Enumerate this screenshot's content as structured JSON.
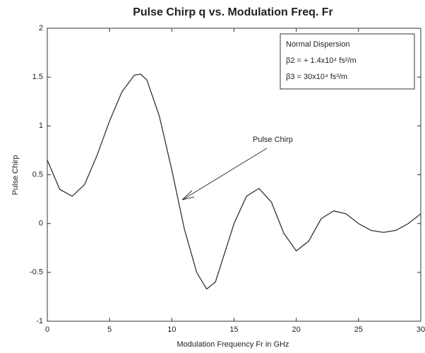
{
  "chart_data": {
    "type": "line",
    "title": "Pulse Chirp q  vs.  Modulation Freq.  Fr",
    "x_label": "Modulation Frequency Fr in GHz",
    "y_label": "Pulse Chirp",
    "annotations": [
      "Normal Dispersion",
      "β2 = + 1.4x10⁴ fs²/m",
      "β3 = 30x10⁴ fs³/m",
      "Pulse Chirp"
    ],
    "x": [
      0,
      1,
      2,
      3,
      4,
      5,
      6,
      7,
      7.5,
      8,
      9,
      10,
      11,
      12,
      12.8,
      13.5,
      14,
      15,
      16,
      17,
      18,
      19,
      20,
      21,
      22,
      23,
      24,
      25,
      26,
      27,
      28,
      29,
      30
    ],
    "series": [
      {
        "name": "Pulse Chirp",
        "color": "#333333",
        "values": [
          0.65,
          0.35,
          0.28,
          0.4,
          0.7,
          1.05,
          1.35,
          1.52,
          1.53,
          1.47,
          1.1,
          0.55,
          -0.05,
          -0.5,
          -0.67,
          -0.6,
          -0.4,
          0.0,
          0.28,
          0.36,
          0.22,
          -0.1,
          -0.28,
          -0.18,
          0.05,
          0.13,
          0.1,
          0.0,
          -0.07,
          -0.09,
          -0.07,
          0.0,
          0.1
        ]
      }
    ],
    "xlim": [
      0,
      30
    ],
    "xticks": [
      0,
      5,
      10,
      15,
      20,
      25,
      30
    ],
    "ylim": [
      -1,
      2
    ],
    "yticks": [
      -1,
      -0.5,
      0,
      0.5,
      1,
      1.5,
      2
    ],
    "grid": false
  }
}
